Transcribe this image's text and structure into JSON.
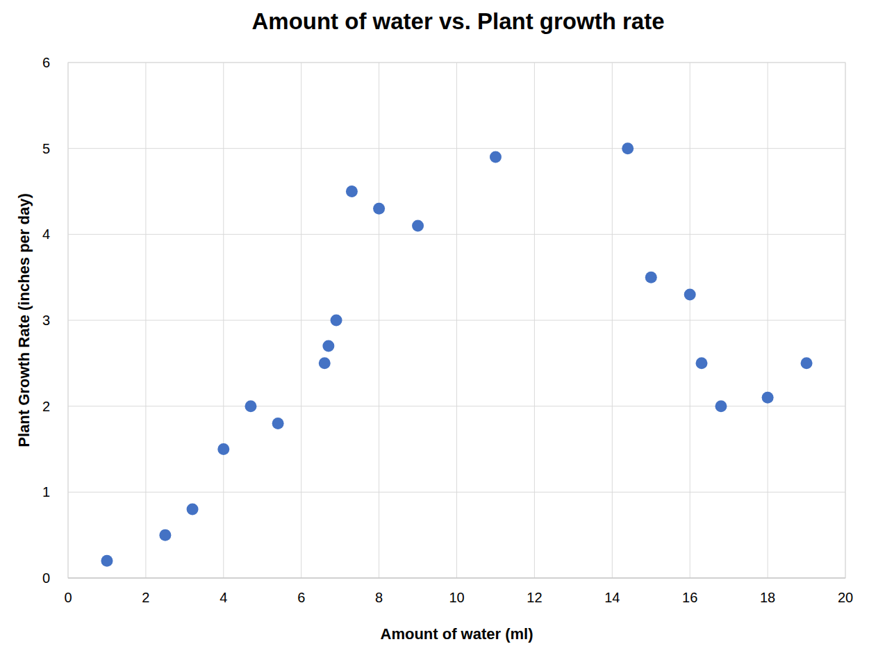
{
  "chart_data": {
    "type": "scatter",
    "title": "Amount of water vs. Plant growth rate",
    "x_label": "Amount of water (ml)",
    "y_label": "Plant Growth Rate (inches per day)",
    "x": [
      1,
      2.5,
      3.2,
      4,
      4.7,
      5.4,
      6.6,
      6.7,
      6.9,
      7.3,
      8,
      9,
      11,
      14.4,
      15,
      16,
      16.3,
      16.8,
      18,
      19
    ],
    "values": [
      0.2,
      0.5,
      0.8,
      1.5,
      2.0,
      1.8,
      2.5,
      2.7,
      3.0,
      4.5,
      4.3,
      4.1,
      4.9,
      5.0,
      3.5,
      3.3,
      2.5,
      2.0,
      2.1,
      2.5
    ],
    "color": "#4472c4",
    "marker": "circle",
    "xlim": [
      0,
      20
    ],
    "ylim": [
      0,
      6
    ],
    "xticks": [
      0,
      2,
      4,
      6,
      8,
      10,
      12,
      14,
      16,
      18,
      20
    ],
    "yticks": [
      0,
      1,
      2,
      3,
      4,
      5,
      6
    ],
    "grid": true
  }
}
